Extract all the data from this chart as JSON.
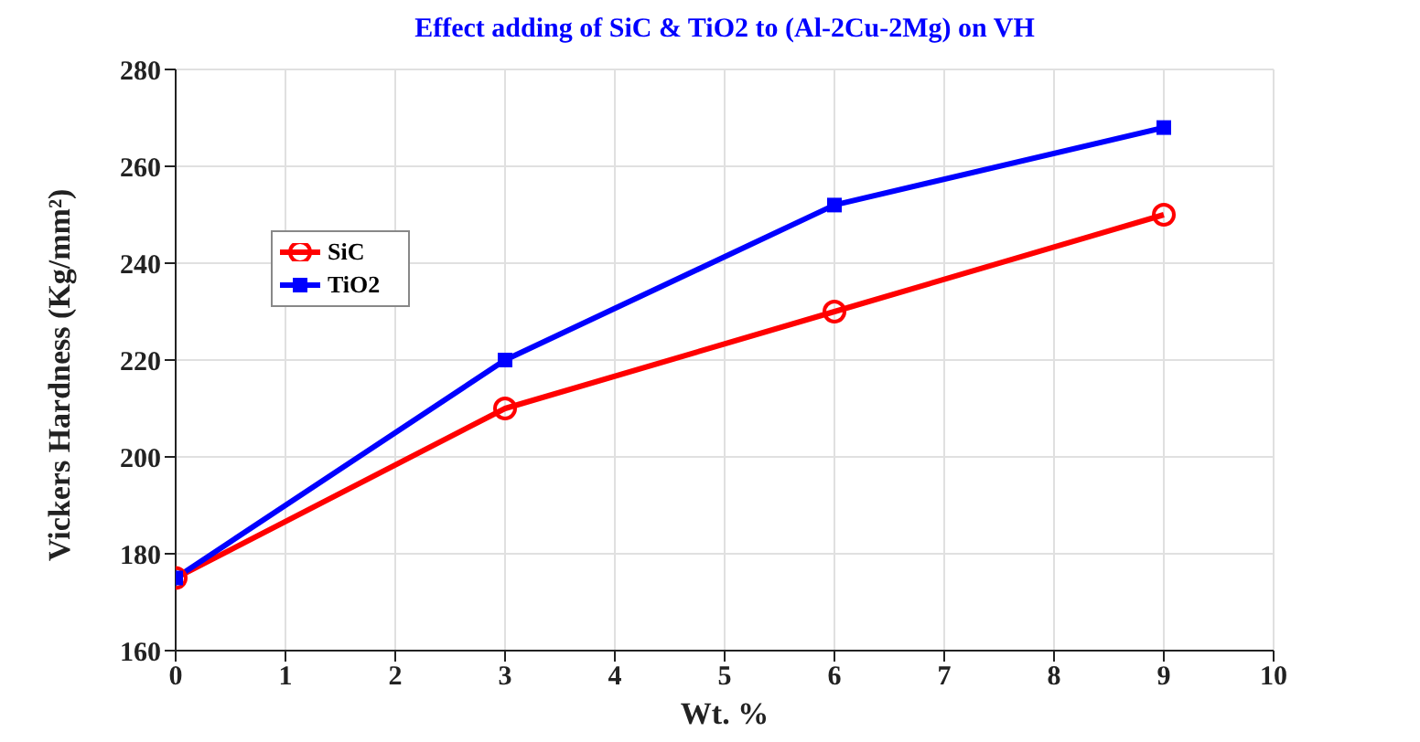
{
  "chart_data": {
    "type": "line",
    "title": "Effect adding of SiC & TiO2 to (Al-2Cu-2Mg) on VH",
    "xlabel": "Wt. %",
    "ylabel": "Vickers Hardness (Kg/mm²)",
    "x": [
      0,
      3,
      6,
      9
    ],
    "series": [
      {
        "name": "SiC",
        "color": "#ff0000",
        "values": [
          175,
          210,
          230,
          250
        ],
        "marker": "circle"
      },
      {
        "name": "TiO2",
        "color": "#0000ff",
        "values": [
          175,
          220,
          252,
          268
        ],
        "marker": "square"
      }
    ],
    "xlim": [
      0,
      10
    ],
    "xticks": [
      0,
      1,
      2,
      3,
      4,
      5,
      6,
      7,
      8,
      9,
      10
    ],
    "ylim": [
      160,
      280
    ],
    "yticks": [
      160,
      180,
      200,
      220,
      240,
      260,
      280
    ],
    "grid": true,
    "legend": "top left",
    "line_style": "solid"
  }
}
